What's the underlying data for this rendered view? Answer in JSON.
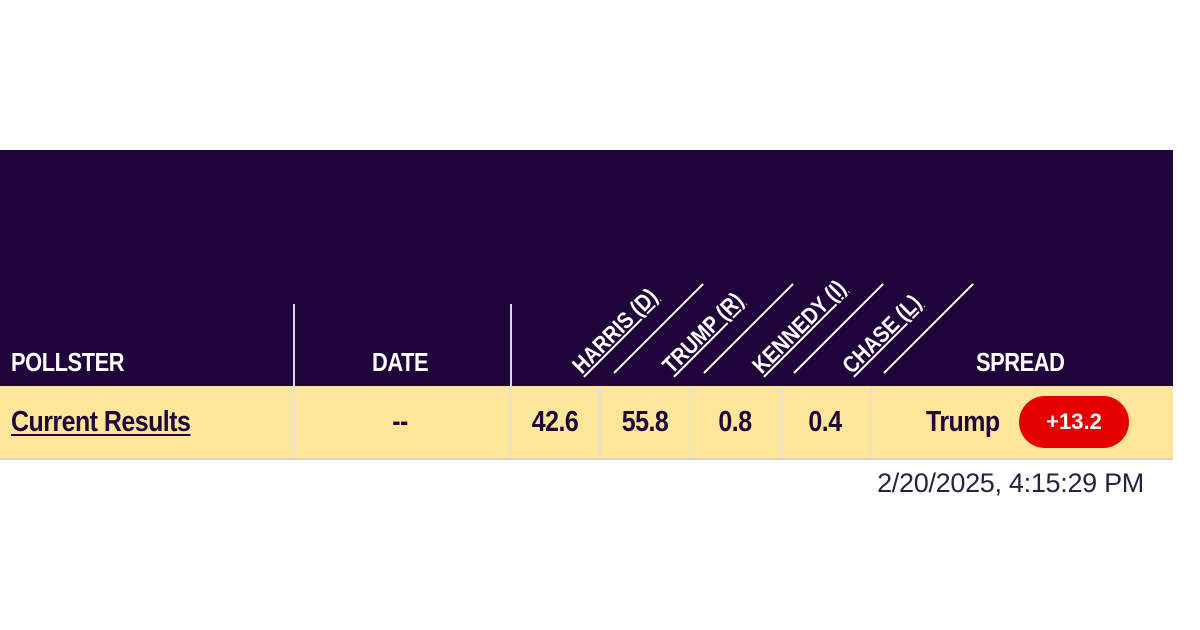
{
  "table": {
    "headers": {
      "pollster": "POLLSTER",
      "date": "DATE",
      "candidates": [
        "HARRIS (D)",
        "TRUMP (R)",
        "KENNEDY (I)",
        "CHASE (L)"
      ],
      "spread": "SPREAD"
    },
    "row": {
      "pollster": "Current Results",
      "date": "--",
      "values": [
        "42.6",
        "55.8",
        "0.8",
        "0.4"
      ],
      "spread_leader": "Trump",
      "spread_value": "+13.2"
    }
  },
  "timestamp": "2/20/2025, 4:15:29 PM",
  "colors": {
    "header_bg": "#1f053a",
    "row_bg": "#fde59a",
    "spread_badge": "#e50000"
  }
}
